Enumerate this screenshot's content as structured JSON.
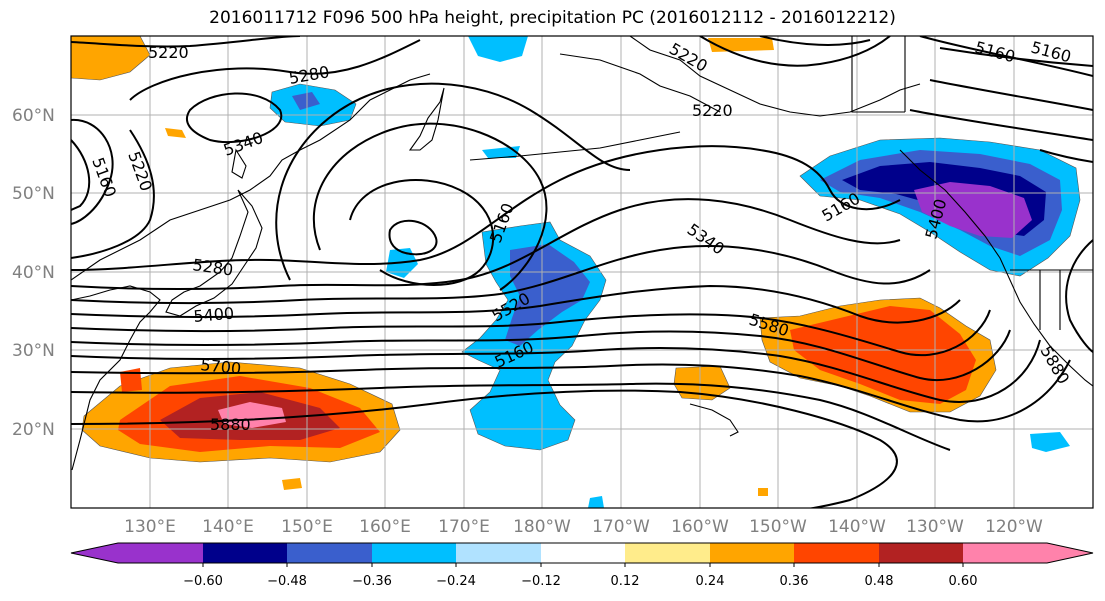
{
  "title": "2016011712 F096 500 hPa height, precipitation PC (2016012112 - 2016012212)",
  "map": {
    "lat_labels": [
      "60°N",
      "50°N",
      "40°N",
      "30°N",
      "20°N"
    ],
    "lon_labels": [
      "130°E",
      "140°E",
      "150°E",
      "160°E",
      "170°E",
      "180°W",
      "170°W",
      "160°W",
      "150°W",
      "140°W",
      "130°W",
      "120°W"
    ],
    "contour_labels": [
      "5220",
      "5280",
      "5340",
      "5160",
      "5220",
      "5280",
      "5160",
      "5220",
      "5340",
      "5160",
      "5520",
      "5160",
      "5580",
      "5400",
      "5400",
      "5700",
      "5880",
      "5220",
      "5160",
      "5160",
      "5880"
    ]
  },
  "colorbar": {
    "ticks": [
      "−0.60",
      "−0.48",
      "−0.36",
      "−0.24",
      "−0.12",
      "0.12",
      "0.24",
      "0.36",
      "0.48",
      "0.60"
    ],
    "colors": [
      "#9932cc",
      "#00008b",
      "#3a5fcd",
      "#00bfff",
      "#b0e2ff",
      "#ffffff",
      "#ffec8b",
      "#ffa500",
      "#ff4500",
      "#b22222",
      "#ff82ab"
    ]
  }
}
